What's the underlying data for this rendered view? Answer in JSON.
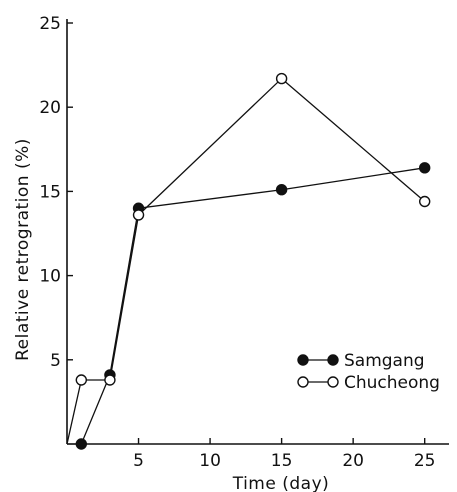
{
  "chart_data": {
    "type": "line",
    "xlabel": "Time (day)",
    "ylabel": "Relative retrogration (%)",
    "xlim": [
      0,
      26
    ],
    "ylim": [
      0,
      25
    ],
    "x_ticks": [
      5,
      10,
      15,
      20,
      25
    ],
    "y_ticks": [
      5,
      10,
      15,
      20,
      25
    ],
    "grid": false,
    "legend_position": "lower-right",
    "series": [
      {
        "name": "Samgang",
        "marker": "filled-circle",
        "x": [
          0,
          1,
          3,
          5,
          15,
          25
        ],
        "y": [
          0,
          0,
          4.1,
          14.0,
          15.1,
          16.4
        ]
      },
      {
        "name": "Chucheong",
        "marker": "open-circle",
        "x": [
          0,
          1,
          3,
          5,
          15,
          25
        ],
        "y": [
          0,
          3.8,
          3.8,
          13.6,
          21.7,
          14.4
        ]
      }
    ]
  }
}
